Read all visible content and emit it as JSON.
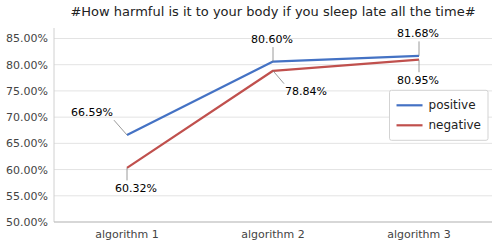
{
  "chart_data": {
    "type": "line",
    "title": "#How harmful is it to your body if you sleep late all the time#",
    "categories": [
      "algorithm 1",
      "algorithm 2",
      "algorithm 3"
    ],
    "series": [
      {
        "name": "positive",
        "color": "#4472C4",
        "values": [
          0.6659,
          0.806,
          0.8168
        ],
        "value_labels": [
          "66.59%",
          "80.60%",
          "81.68%"
        ]
      },
      {
        "name": "negative",
        "color": "#C0504D",
        "values": [
          0.6032,
          0.7884,
          0.8095
        ],
        "value_labels": [
          "60.32%",
          "78.84%",
          "80.95%"
        ]
      }
    ],
    "ylim": [
      0.5,
      0.87
    ],
    "yticks": [
      {
        "value": 0.5,
        "label": "50.00%"
      },
      {
        "value": 0.55,
        "label": "55.00%"
      },
      {
        "value": 0.6,
        "label": "60.00%"
      },
      {
        "value": 0.65,
        "label": "65.00%"
      },
      {
        "value": 0.7,
        "label": "70.00%"
      },
      {
        "value": 0.75,
        "label": "75.00%"
      },
      {
        "value": 0.8,
        "label": "80.00%"
      },
      {
        "value": 0.85,
        "label": "85.00%"
      }
    ],
    "grid": true,
    "legend": "right",
    "data_labels": true
  }
}
